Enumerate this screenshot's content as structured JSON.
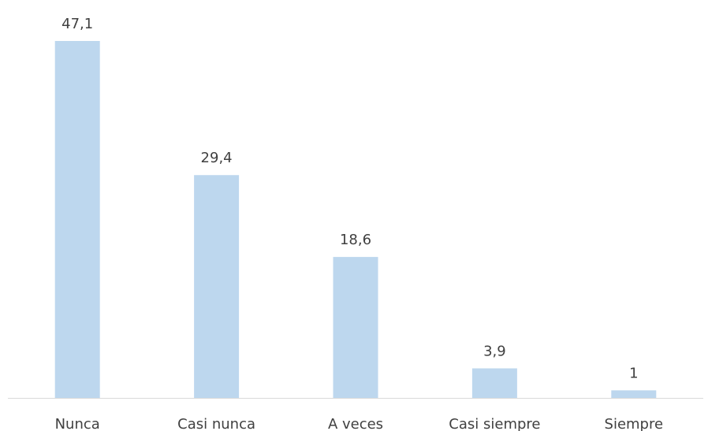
{
  "chart_data": {
    "type": "bar",
    "categories": [
      "Nunca",
      "Casi nunca",
      "A veces",
      "Casi siempre",
      "Siempre"
    ],
    "values": [
      47.1,
      29.4,
      18.6,
      3.9,
      1
    ],
    "value_labels": [
      "47,1",
      "29,4",
      "18,6",
      "3,9",
      "1"
    ],
    "title": "",
    "xlabel": "",
    "ylabel": "",
    "ylim": [
      0,
      47.1
    ],
    "grid": false,
    "legend": "none",
    "colors": {
      "bar": "#bdd7ee",
      "axis": "#d9d9d9",
      "text": "#404040"
    }
  }
}
